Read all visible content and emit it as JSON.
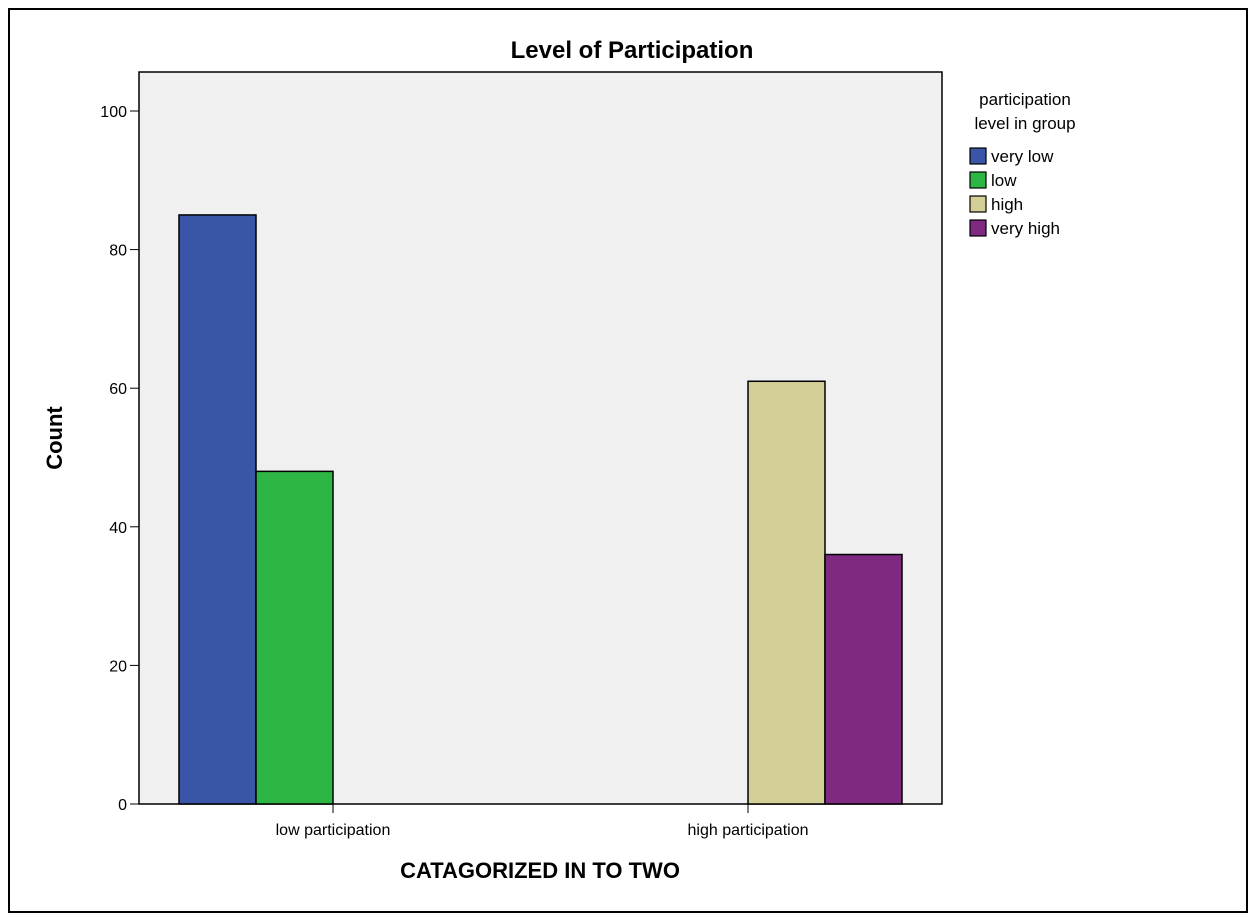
{
  "chart_data": {
    "type": "bar",
    "title": "Level of Participation",
    "xlabel": "CATAGORIZED IN TO TWO",
    "ylabel": "Count",
    "categories": [
      "low participation",
      "high participation"
    ],
    "ylim": [
      0,
      105
    ],
    "yticks": [
      0,
      20,
      40,
      60,
      80,
      100
    ],
    "legend_title": [
      "participation",
      "level in group"
    ],
    "legend_position": "right",
    "grid": false,
    "series": [
      {
        "name": "very low",
        "color": "#3a55a8",
        "values": [
          85,
          null
        ]
      },
      {
        "name": "low",
        "color": "#2eb645",
        "values": [
          48,
          null
        ]
      },
      {
        "name": "high",
        "color": "#d3cf97",
        "values": [
          null,
          61
        ]
      },
      {
        "name": "very high",
        "color": "#7f2a80",
        "values": [
          null,
          36
        ]
      }
    ]
  }
}
